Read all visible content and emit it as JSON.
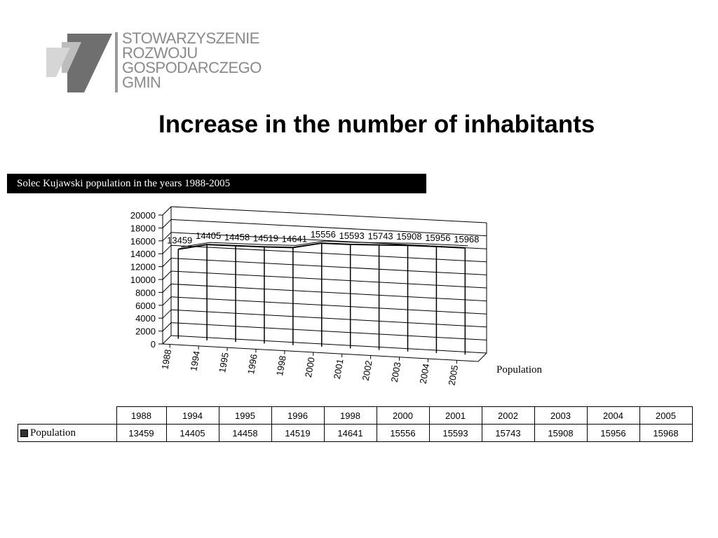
{
  "logo": {
    "lines": [
      "STOWARZYSZENIE",
      "ROZWOJU",
      "GOSPODARCZEGO",
      "GMIN"
    ]
  },
  "slide": {
    "title": "Increase in the number of inhabitants"
  },
  "chart_caption": "Solec Kujawski population in the years 1988-2005",
  "chart_data": {
    "type": "line",
    "title": "Solec Kujawski population in the years 1988-2005",
    "categories": [
      "1988",
      "1994",
      "1995",
      "1996",
      "1998",
      "2000",
      "2001",
      "2002",
      "2003",
      "2004",
      "2005"
    ],
    "series": [
      {
        "name": "Population",
        "values": [
          13459,
          14405,
          14458,
          14519,
          14641,
          15556,
          15593,
          15743,
          15908,
          15956,
          15968
        ]
      }
    ],
    "ylim": [
      0,
      20000
    ],
    "yticks": [
      "20000",
      "18000",
      "16000",
      "14000",
      "12000",
      "10000",
      "8000",
      "6000",
      "4000",
      "2000",
      "0"
    ],
    "grid": true,
    "legend_placement": "right",
    "style": "3d"
  },
  "table": {
    "legend_label": "Population",
    "years": [
      "1988",
      "1994",
      "1995",
      "1996",
      "1998",
      "2000",
      "2001",
      "2002",
      "2003",
      "2004",
      "2005"
    ],
    "values": [
      "13459",
      "14405",
      "14458",
      "14519",
      "14641",
      "15556",
      "15593",
      "15743",
      "15908",
      "15956",
      "15968"
    ]
  },
  "colors": {
    "logo_gray": "#8a8a8a",
    "caption_bg": "#000000",
    "caption_text": "#ffffff",
    "line": "#000000"
  }
}
